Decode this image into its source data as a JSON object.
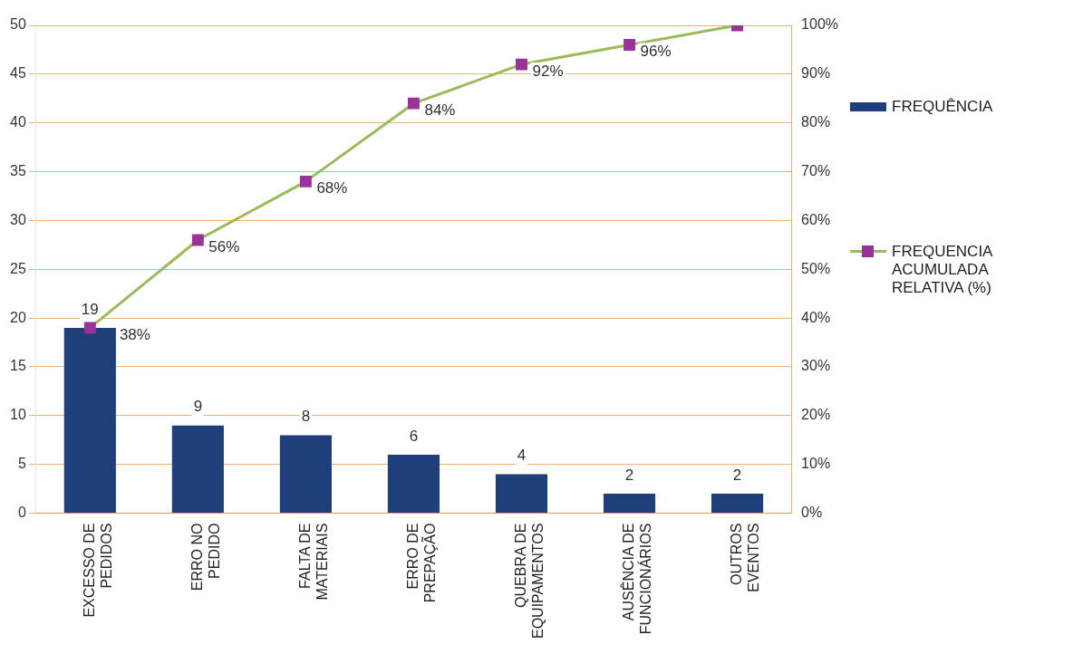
{
  "chart_data": {
    "type": "bar",
    "categories": [
      "EXCESSO DE PEDIDOS",
      "ERRO NO PEDIDO",
      "FALTA DE MATERIAIS",
      "ERRO DE PREPAÇÃO",
      "QUEBRA DE EQUIPAMENTOS",
      "AUSÊNCIA DE FUNCIONÁRIOS",
      "OUTROS EVENTOS"
    ],
    "series": [
      {
        "name": "FREQUÊNCIA",
        "color": "#1f3f7a",
        "values": [
          19,
          9,
          8,
          6,
          4,
          2,
          2
        ],
        "value_labels": [
          "19",
          "9",
          "8",
          "6",
          "4",
          "2",
          "2"
        ]
      },
      {
        "name": "FREQUENCIA ACUMULADA RELATIVA (%)",
        "type": "line",
        "axis": "y2",
        "color": "#9bbb59",
        "colors": [
          "#993399",
          "#993399",
          "#993399",
          "#993399",
          "#993399",
          "#993399",
          "#993399"
        ],
        "marker": "square",
        "values": [
          38,
          56,
          68,
          84,
          92,
          96,
          100
        ],
        "value_labels": [
          "38%",
          "56%",
          "68%",
          "84%",
          "92%",
          "96%",
          null
        ]
      }
    ],
    "ylim": [
      0,
      50
    ],
    "yticks": [
      0,
      5,
      10,
      15,
      20,
      25,
      30,
      35,
      40,
      45,
      50
    ],
    "y2lim": [
      0,
      100
    ],
    "y2ticks": [
      {
        "value": 0,
        "label": "0%"
      },
      {
        "value": 10,
        "label": "10%"
      },
      {
        "value": 20,
        "label": "20%"
      },
      {
        "value": 30,
        "label": "30%"
      },
      {
        "value": 40,
        "label": "40%"
      },
      {
        "value": 50,
        "label": "50%"
      },
      {
        "value": 60,
        "label": "60%"
      },
      {
        "value": 70,
        "label": "70%"
      },
      {
        "value": 80,
        "label": "80%"
      },
      {
        "value": 90,
        "label": "90%"
      },
      {
        "value": 100,
        "label": "100%"
      }
    ],
    "grid": "y",
    "legend": "right"
  }
}
